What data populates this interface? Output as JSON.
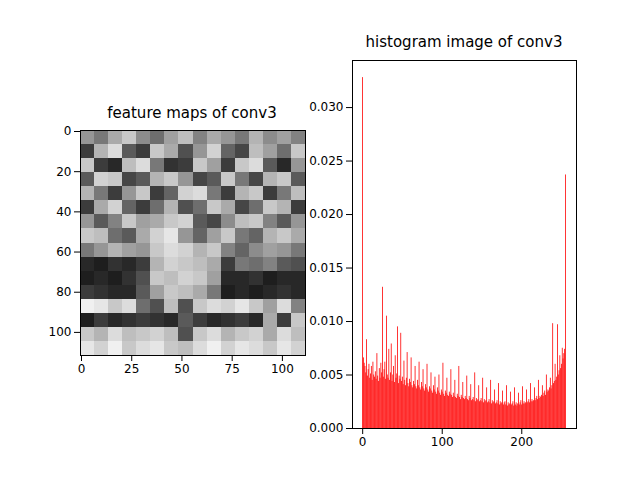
{
  "chart_data": [
    {
      "type": "image",
      "title": "feature maps of conv3",
      "xlim": [
        -0.5,
        111.5
      ],
      "ylim": [
        111.5,
        -0.5
      ],
      "xticks": [
        0,
        25,
        50,
        75,
        100
      ],
      "yticks": [
        0,
        20,
        40,
        60,
        80,
        100
      ],
      "vlim": [
        0,
        255
      ],
      "cells": [
        [
          150,
          120,
          170,
          200,
          140,
          110,
          160,
          190,
          130,
          170,
          150,
          120,
          180,
          140,
          160,
          130
        ],
        [
          60,
          180,
          220,
          90,
          60,
          200,
          170,
          80,
          150,
          210,
          100,
          70,
          190,
          160,
          110,
          200
        ],
        [
          200,
          60,
          40,
          190,
          220,
          120,
          50,
          60,
          200,
          160,
          60,
          200,
          220,
          90,
          40,
          150
        ],
        [
          90,
          210,
          200,
          70,
          90,
          180,
          200,
          150,
          70,
          90,
          200,
          120,
          70,
          180,
          200,
          90
        ],
        [
          180,
          120,
          60,
          150,
          200,
          60,
          100,
          210,
          220,
          120,
          60,
          180,
          200,
          60,
          120,
          190
        ],
        [
          60,
          170,
          210,
          100,
          60,
          110,
          180,
          80,
          110,
          200,
          170,
          70,
          110,
          200,
          180,
          60
        ],
        [
          150,
          90,
          130,
          200,
          160,
          170,
          200,
          210,
          90,
          70,
          140,
          190,
          200,
          130,
          90,
          150
        ],
        [
          200,
          190,
          110,
          90,
          170,
          210,
          230,
          150,
          100,
          160,
          200,
          120,
          100,
          180,
          200,
          170
        ],
        [
          120,
          150,
          180,
          160,
          150,
          200,
          220,
          210,
          180,
          200,
          130,
          100,
          140,
          160,
          150,
          120
        ],
        [
          40,
          30,
          50,
          40,
          60,
          180,
          210,
          200,
          190,
          170,
          60,
          120,
          110,
          130,
          90,
          80
        ],
        [
          30,
          40,
          30,
          50,
          80,
          200,
          190,
          210,
          200,
          160,
          40,
          40,
          50,
          30,
          40,
          40
        ],
        [
          60,
          50,
          40,
          40,
          90,
          160,
          200,
          190,
          170,
          120,
          30,
          40,
          30,
          40,
          50,
          40
        ],
        [
          240,
          230,
          200,
          220,
          110,
          80,
          190,
          80,
          200,
          220,
          210,
          230,
          200,
          160,
          220,
          130
        ],
        [
          30,
          60,
          40,
          50,
          60,
          50,
          40,
          90,
          60,
          40,
          50,
          60,
          40,
          170,
          60,
          200
        ],
        [
          200,
          180,
          220,
          190,
          200,
          210,
          190,
          80,
          200,
          220,
          180,
          200,
          210,
          170,
          220,
          190
        ],
        [
          230,
          210,
          240,
          200,
          220,
          230,
          200,
          190,
          220,
          240,
          210,
          230,
          220,
          200,
          230,
          210
        ]
      ]
    },
    {
      "type": "histogram",
      "title": "histogram image of conv3",
      "color": "#ff0000",
      "xlim": [
        -12.8,
        268.8
      ],
      "xticks": [
        0,
        100,
        200
      ],
      "ylim": [
        0,
        0.0344
      ],
      "yticks": [
        {
          "value": 0,
          "label": "0.000"
        },
        {
          "value": 0.005,
          "label": "0.005"
        },
        {
          "value": 0.01,
          "label": "0.010"
        },
        {
          "value": 0.015,
          "label": "0.015"
        },
        {
          "value": 0.02,
          "label": "0.020"
        },
        {
          "value": 0.025,
          "label": "0.025"
        },
        {
          "value": 0.03,
          "label": "0.030"
        }
      ],
      "bins": [
        0,
        1,
        2,
        3,
        4,
        5,
        6,
        7,
        8,
        9,
        10,
        11,
        12,
        13,
        14,
        15,
        16,
        17,
        18,
        19,
        20,
        21,
        22,
        23,
        24,
        25,
        26,
        27,
        28,
        29,
        30,
        31,
        32,
        33,
        34,
        35,
        36,
        37,
        38,
        39,
        40,
        41,
        42,
        43,
        44,
        45,
        46,
        47,
        48,
        49,
        50,
        51,
        52,
        53,
        54,
        55,
        56,
        57,
        58,
        59,
        60,
        61,
        62,
        63,
        64,
        65,
        66,
        67,
        68,
        69,
        70,
        71,
        72,
        73,
        74,
        75,
        76,
        77,
        78,
        79,
        80,
        81,
        82,
        83,
        84,
        85,
        86,
        87,
        88,
        89,
        90,
        91,
        92,
        93,
        94,
        95,
        96,
        97,
        98,
        99,
        100,
        101,
        102,
        103,
        104,
        105,
        106,
        107,
        108,
        109,
        110,
        111,
        112,
        113,
        114,
        115,
        116,
        117,
        118,
        119,
        120,
        121,
        122,
        123,
        124,
        125,
        126,
        127,
        128,
        129,
        130,
        131,
        132,
        133,
        134,
        135,
        136,
        137,
        138,
        139,
        140,
        141,
        142,
        143,
        144,
        145,
        146,
        147,
        148,
        149,
        150,
        151,
        152,
        153,
        154,
        155,
        156,
        157,
        158,
        159,
        160,
        161,
        162,
        163,
        164,
        165,
        166,
        167,
        168,
        169,
        170,
        171,
        172,
        173,
        174,
        175,
        176,
        177,
        178,
        179,
        180,
        181,
        182,
        183,
        184,
        185,
        186,
        187,
        188,
        189,
        190,
        191,
        192,
        193,
        194,
        195,
        196,
        197,
        198,
        199,
        200,
        201,
        202,
        203,
        204,
        205,
        206,
        207,
        208,
        209,
        210,
        211,
        212,
        213,
        214,
        215,
        216,
        217,
        218,
        219,
        220,
        221,
        222,
        223,
        224,
        225,
        226,
        227,
        228,
        229,
        230,
        231,
        232,
        233,
        234,
        235,
        236,
        237,
        238,
        239,
        240,
        241,
        242,
        243,
        244,
        245,
        246,
        247,
        248,
        249,
        250,
        251,
        252,
        253,
        254,
        255,
        256
      ],
      "values": [
        0.0328,
        0.0066,
        0.0061,
        0.0058,
        0.0052,
        0.0083,
        0.0049,
        0.0055,
        0.006,
        0.0047,
        0.0051,
        0.0058,
        0.0045,
        0.0062,
        0.005,
        0.0048,
        0.0053,
        0.0046,
        0.007,
        0.0049,
        0.0044,
        0.0056,
        0.0047,
        0.0061,
        0.0052,
        0.0132,
        0.0048,
        0.0055,
        0.0062,
        0.0046,
        0.0105,
        0.005,
        0.0047,
        0.0074,
        0.0045,
        0.0052,
        0.0079,
        0.0044,
        0.005,
        0.0058,
        0.0043,
        0.0068,
        0.0047,
        0.0051,
        0.0095,
        0.0042,
        0.0049,
        0.0046,
        0.0089,
        0.0044,
        0.0048,
        0.0041,
        0.0063,
        0.0045,
        0.004,
        0.0047,
        0.0071,
        0.0042,
        0.0039,
        0.0046,
        0.0043,
        0.0066,
        0.004,
        0.0038,
        0.0044,
        0.0041,
        0.0058,
        0.0039,
        0.0037,
        0.0045,
        0.004,
        0.0062,
        0.0038,
        0.0036,
        0.0043,
        0.0039,
        0.0055,
        0.0037,
        0.0035,
        0.0041,
        0.0038,
        0.006,
        0.0036,
        0.0034,
        0.0039,
        0.0037,
        0.0052,
        0.0035,
        0.0033,
        0.004,
        0.0036,
        0.0048,
        0.0034,
        0.0032,
        0.0038,
        0.0035,
        0.005,
        0.0033,
        0.0031,
        0.0036,
        0.0034,
        0.0061,
        0.0032,
        0.003,
        0.0035,
        0.0033,
        0.0047,
        0.0031,
        0.003,
        0.0034,
        0.0032,
        0.0055,
        0.0031,
        0.0029,
        0.0033,
        0.003,
        0.0045,
        0.0029,
        0.0028,
        0.0032,
        0.003,
        0.0058,
        0.0029,
        0.0027,
        0.0031,
        0.0029,
        0.0043,
        0.0028,
        0.0027,
        0.003,
        0.0028,
        0.0049,
        0.0027,
        0.0026,
        0.003,
        0.0028,
        0.0041,
        0.0026,
        0.0027,
        0.0029,
        0.0026,
        0.0052,
        0.0025,
        0.0028,
        0.0026,
        0.0027,
        0.004,
        0.0025,
        0.0026,
        0.0028,
        0.0025,
        0.0047,
        0.0024,
        0.0027,
        0.0025,
        0.0026,
        0.0038,
        0.0024,
        0.0025,
        0.0027,
        0.0024,
        0.0045,
        0.0023,
        0.0026,
        0.0024,
        0.0025,
        0.0036,
        0.0023,
        0.0024,
        0.0026,
        0.0023,
        0.0042,
        0.0022,
        0.0025,
        0.0023,
        0.0024,
        0.0035,
        0.0022,
        0.0024,
        0.0025,
        0.0022,
        0.004,
        0.0021,
        0.0024,
        0.0022,
        0.0023,
        0.0034,
        0.0022,
        0.0023,
        0.0025,
        0.0021,
        0.0038,
        0.0022,
        0.0024,
        0.0021,
        0.0023,
        0.0033,
        0.0022,
        0.0024,
        0.0026,
        0.0022,
        0.0039,
        0.0023,
        0.0025,
        0.0023,
        0.0024,
        0.0036,
        0.0024,
        0.0025,
        0.0027,
        0.0024,
        0.0042,
        0.0025,
        0.0027,
        0.0025,
        0.0026,
        0.0038,
        0.0026,
        0.0028,
        0.003,
        0.0027,
        0.0045,
        0.0028,
        0.003,
        0.0029,
        0.0031,
        0.004,
        0.003,
        0.0033,
        0.0035,
        0.0031,
        0.005,
        0.0034,
        0.0036,
        0.0035,
        0.0038,
        0.0047,
        0.0037,
        0.004,
        0.0098,
        0.0042,
        0.0044,
        0.006,
        0.0045,
        0.0048,
        0.0097,
        0.005,
        0.0054,
        0.0068,
        0.0056,
        0.006,
        0.0075,
        0.0065,
        0.007,
        0.0074,
        0.0237
      ]
    }
  ]
}
